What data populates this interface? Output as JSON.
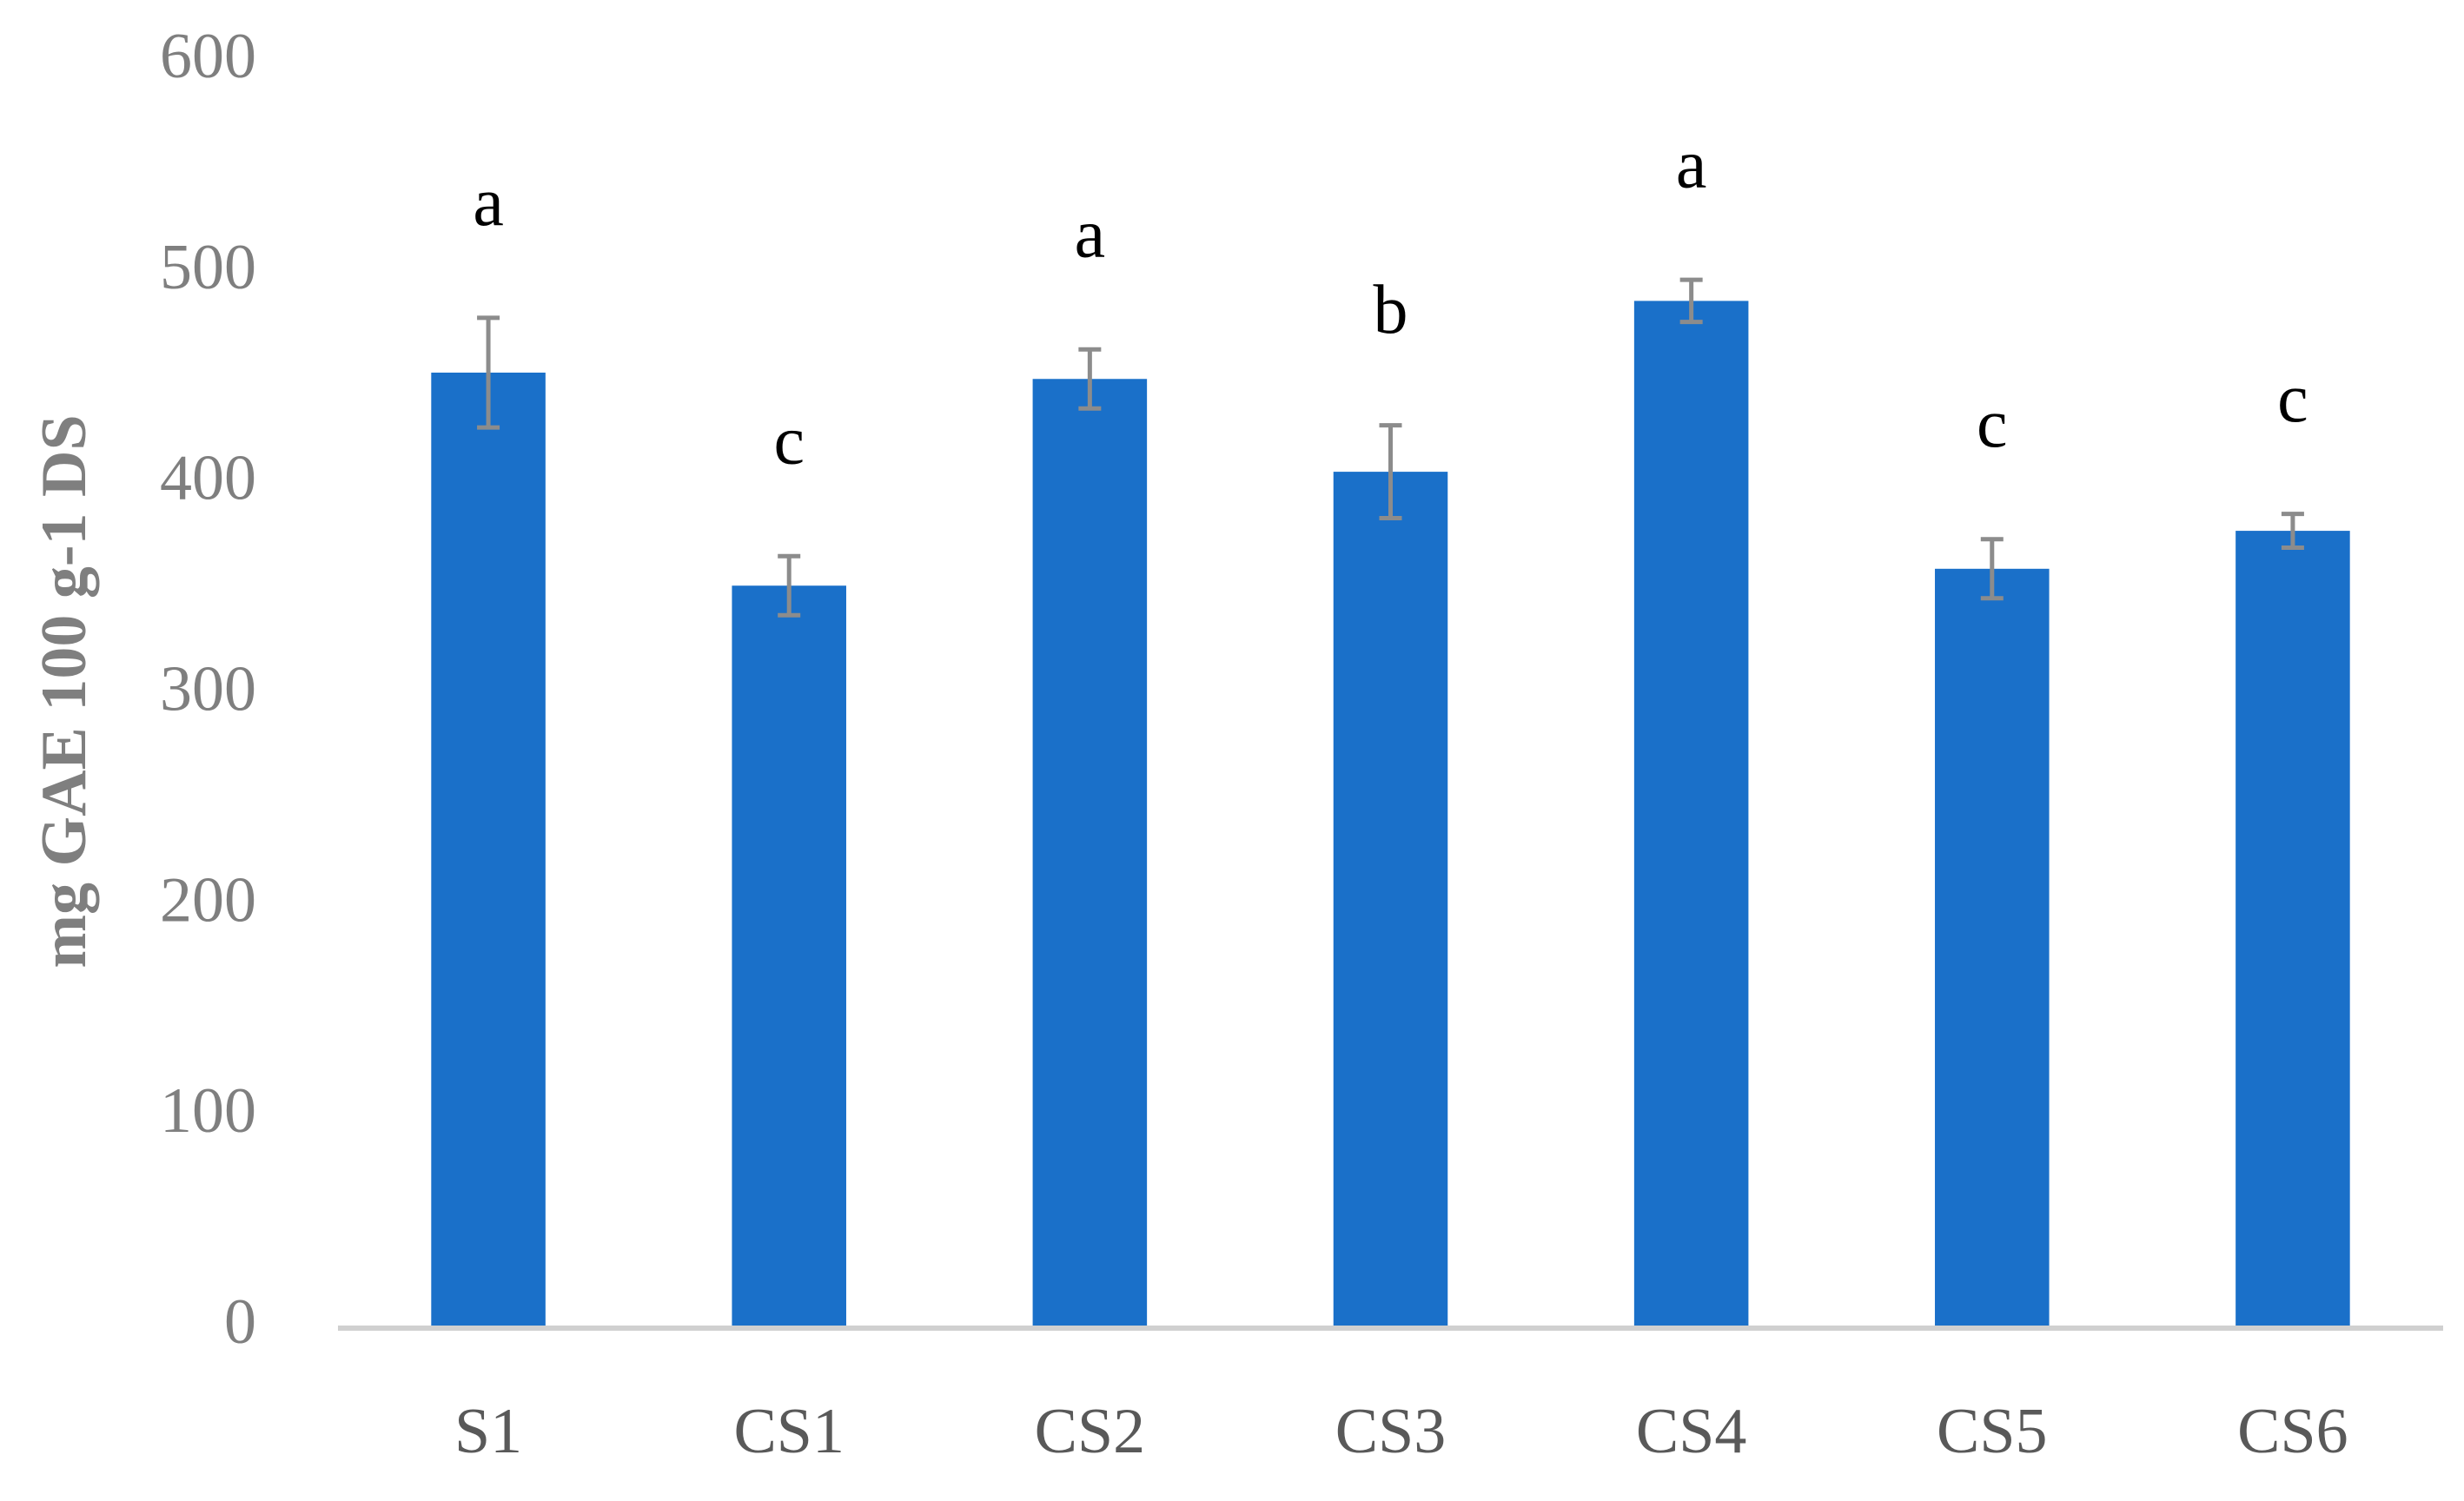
{
  "chart_data": {
    "type": "bar",
    "y_label": "mg GAE 100 g-1 DS",
    "categories": [
      "S1",
      "CS1",
      "CS2",
      "CS3",
      "CS4",
      "CS5",
      "CS6"
    ],
    "values": [
      453,
      352,
      450,
      406,
      487,
      360,
      378
    ],
    "errors": [
      26,
      14,
      14,
      22,
      10,
      14,
      8
    ],
    "annotations": [
      "a",
      "c",
      "a",
      "b",
      "a",
      "c",
      "c"
    ],
    "color": "#1a70c9",
    "error_color": "#8c8c8c",
    "ylim": [
      0,
      600
    ],
    "yticks": [
      0,
      100,
      200,
      300,
      400,
      500,
      600
    ],
    "grid": false
  }
}
